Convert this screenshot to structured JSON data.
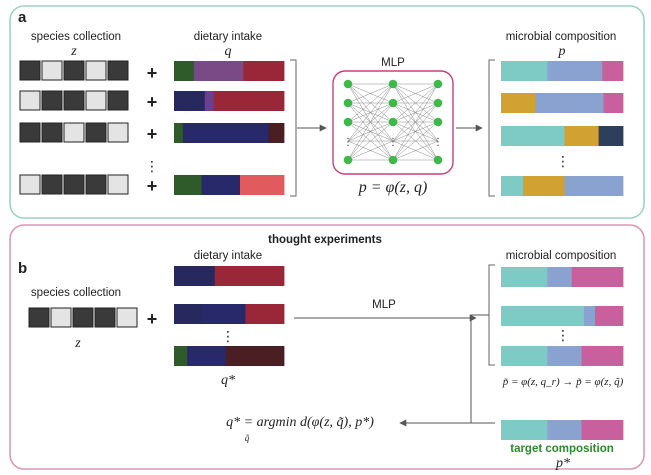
{
  "colors": {
    "panel_a_border": "#9fd3c2",
    "panel_b_border": "#d79ab6",
    "mlp_border": "#c8407a",
    "node": "#3fb84a",
    "species_present": "#3a3a3a",
    "species_absent": "#e4e4e4",
    "target_label": "#2b8a2b"
  },
  "panel_a": {
    "letter": "a",
    "species_title": "species collection",
    "species_var": "z",
    "diet_title": "dietary intake",
    "diet_var": "q",
    "mlp_title": "MLP",
    "formula": "p = φ(z, q)",
    "composition_title": "microbial composition",
    "composition_var": "p",
    "plus": "+",
    "ellipsis": "⋮",
    "species_rows": [
      [
        1,
        0,
        1,
        0,
        1
      ],
      [
        0,
        1,
        1,
        0,
        1
      ],
      [
        1,
        1,
        0,
        1,
        0
      ],
      [
        0,
        1,
        1,
        1,
        0
      ]
    ],
    "diet_rows": [
      [
        {
          "w": 0.18,
          "c": "#2f5a2a"
        },
        {
          "w": 0.45,
          "c": "#7a4a86"
        },
        {
          "w": 0.37,
          "c": "#9a2737"
        }
      ],
      [
        {
          "w": 0.28,
          "c": "#26285e"
        },
        {
          "w": 0.08,
          "c": "#6a3f92"
        },
        {
          "w": 0.64,
          "c": "#9a2737"
        }
      ],
      [
        {
          "w": 0.08,
          "c": "#2f5a2a"
        },
        {
          "w": 0.78,
          "c": "#27296a"
        },
        {
          "w": 0.14,
          "c": "#4a1e22"
        }
      ],
      [
        {
          "w": 0.25,
          "c": "#2f5a2a"
        },
        {
          "w": 0.35,
          "c": "#27296a"
        },
        {
          "w": 0.4,
          "c": "#e05a5e"
        }
      ]
    ],
    "composition_rows": [
      [
        {
          "w": 0.38,
          "c": "#7ecac4"
        },
        {
          "w": 0.45,
          "c": "#8aa2cf"
        },
        {
          "w": 0.17,
          "c": "#c9609e"
        }
      ],
      [
        {
          "w": 0.28,
          "c": "#d1a132"
        },
        {
          "w": 0.56,
          "c": "#8aa2cf"
        },
        {
          "w": 0.16,
          "c": "#c9609e"
        }
      ],
      [
        {
          "w": 0.52,
          "c": "#7ecac4"
        },
        {
          "w": 0.28,
          "c": "#d1a132"
        },
        {
          "w": 0.2,
          "c": "#2e3f5c"
        }
      ],
      [
        {
          "w": 0.18,
          "c": "#7ecac4"
        },
        {
          "w": 0.34,
          "c": "#d1a132"
        },
        {
          "w": 0.48,
          "c": "#8aa2cf"
        }
      ]
    ]
  },
  "panel_b": {
    "letter": "b",
    "header": "thought experiments",
    "species_title": "species collection",
    "species_var": "z",
    "species_row": [
      1,
      0,
      1,
      1,
      0
    ],
    "plus": "+",
    "diet_title": "dietary intake",
    "diet_var": "q*",
    "mlp_label": "MLP",
    "ellipsis": "⋮",
    "composition_title": "microbial composition",
    "formula_right": "p̃ = φ(z, q_r) → p̃ = φ(z, q̃)",
    "formula_left": "q* = argmin d(φ(z, q̃), p*)",
    "argmin_sub": "q̃",
    "target_label": "target composition",
    "target_var": "p*",
    "diet_rows": [
      [
        {
          "w": 0.37,
          "c": "#26285e"
        },
        {
          "w": 0.63,
          "c": "#9a2737"
        }
      ],
      [
        {
          "w": 0.25,
          "c": "#26285e"
        },
        {
          "w": 0.4,
          "c": "#27296a"
        },
        {
          "w": 0.35,
          "c": "#9a2737"
        }
      ],
      [
        {
          "w": 0.12,
          "c": "#2f5a2a"
        },
        {
          "w": 0.35,
          "c": "#27296a"
        },
        {
          "w": 0.53,
          "c": "#4a1e22"
        }
      ]
    ],
    "composition_rows": [
      [
        {
          "w": 0.38,
          "c": "#7ecac4"
        },
        {
          "w": 0.2,
          "c": "#8aa2cf"
        },
        {
          "w": 0.42,
          "c": "#c9609e"
        }
      ],
      [
        {
          "w": 0.68,
          "c": "#7ecac4"
        },
        {
          "w": 0.09,
          "c": "#8aa2cf"
        },
        {
          "w": 0.23,
          "c": "#c9609e"
        }
      ],
      [
        {
          "w": 0.38,
          "c": "#7ecac4"
        },
        {
          "w": 0.28,
          "c": "#8aa2cf"
        },
        {
          "w": 0.34,
          "c": "#c9609e"
        }
      ]
    ],
    "target_row": [
      {
        "w": 0.38,
        "c": "#7ecac4"
      },
      {
        "w": 0.28,
        "c": "#8aa2cf"
      },
      {
        "w": 0.34,
        "c": "#c9609e"
      }
    ]
  }
}
